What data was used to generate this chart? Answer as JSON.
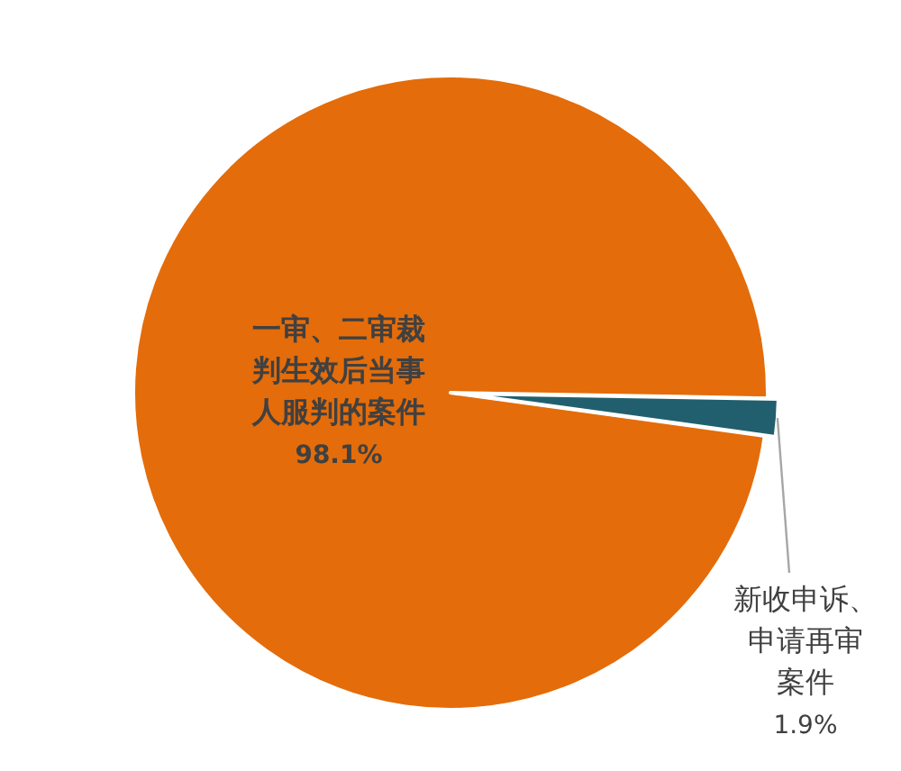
{
  "chart_data": {
    "type": "pie",
    "categories": [
      "一审、二审裁判生效后当事人服判的案件",
      "新收申诉、申请再审案件"
    ],
    "values": [
      98.1,
      1.9
    ],
    "colors": [
      "#e46c0a",
      "#215f6e"
    ],
    "value_labels": [
      "98.1%",
      "1.9%"
    ]
  }
}
